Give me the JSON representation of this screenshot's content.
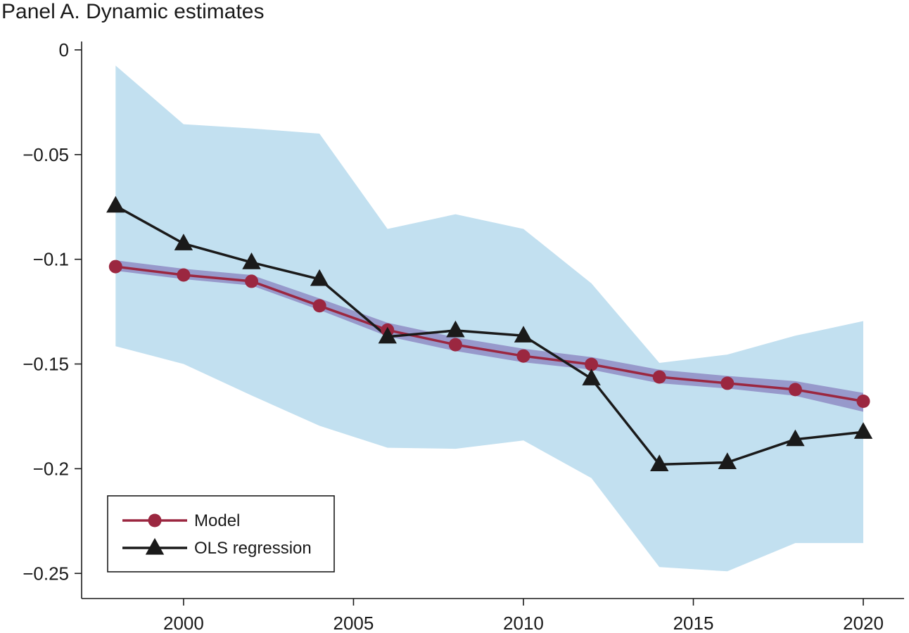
{
  "panel_title": "Panel A. Dynamic estimates",
  "colors": {
    "model": "#9b2740",
    "model_band": "#8f8cc4",
    "ols": "#1a1a1a",
    "ols_band": "#c2e0f0"
  },
  "chart_data": {
    "type": "line",
    "title": "Panel A. Dynamic estimates",
    "xlabel": "",
    "ylabel": "",
    "xlim": [
      1997,
      2021.2
    ],
    "ylim": [
      -0.262,
      0.004
    ],
    "x_ticks": [
      2000,
      2005,
      2010,
      2015,
      2020
    ],
    "x_tick_labels": [
      "2000",
      "2005",
      "2010",
      "2015",
      "2020"
    ],
    "y_ticks": [
      0,
      -0.05,
      -0.1,
      -0.15,
      -0.2,
      -0.25
    ],
    "y_tick_labels": [
      "0",
      "−0.05",
      "−0.1",
      "−0.15",
      "−0.2",
      "−0.25"
    ],
    "grid": false,
    "legend_position": "bottom-left",
    "x": [
      1998,
      2000,
      2002,
      2004,
      2006,
      2008,
      2010,
      2012,
      2014,
      2016,
      2018,
      2020
    ],
    "series": [
      {
        "name": "Model",
        "marker": "circle",
        "values": [
          -0.1035,
          -0.1075,
          -0.1105,
          -0.1222,
          -0.1338,
          -0.1408,
          -0.1462,
          -0.1502,
          -0.1562,
          -0.1592,
          -0.1622,
          -0.1678
        ],
        "band_lower": [
          -0.1055,
          -0.1095,
          -0.1125,
          -0.1242,
          -0.1368,
          -0.1438,
          -0.1492,
          -0.1527,
          -0.1592,
          -0.1617,
          -0.1652,
          -0.1728
        ],
        "band_upper": [
          -0.1005,
          -0.1045,
          -0.1075,
          -0.1187,
          -0.1303,
          -0.1373,
          -0.1427,
          -0.1467,
          -0.1527,
          -0.1557,
          -0.1582,
          -0.1638
        ]
      },
      {
        "name": "OLS regression",
        "marker": "triangle",
        "values": [
          -0.0745,
          -0.0925,
          -0.1015,
          -0.1095,
          -0.137,
          -0.134,
          -0.1365,
          -0.157,
          -0.198,
          -0.197,
          -0.186,
          -0.1825
        ],
        "band_lower": [
          -0.1415,
          -0.15,
          -0.165,
          -0.1795,
          -0.19,
          -0.1905,
          -0.1865,
          -0.2045,
          -0.247,
          -0.249,
          -0.2355,
          -0.2355
        ],
        "band_upper": [
          -0.0075,
          -0.0355,
          -0.0375,
          -0.04,
          -0.0855,
          -0.0785,
          -0.0855,
          -0.1115,
          -0.1495,
          -0.1455,
          -0.1365,
          -0.1295
        ]
      }
    ]
  }
}
